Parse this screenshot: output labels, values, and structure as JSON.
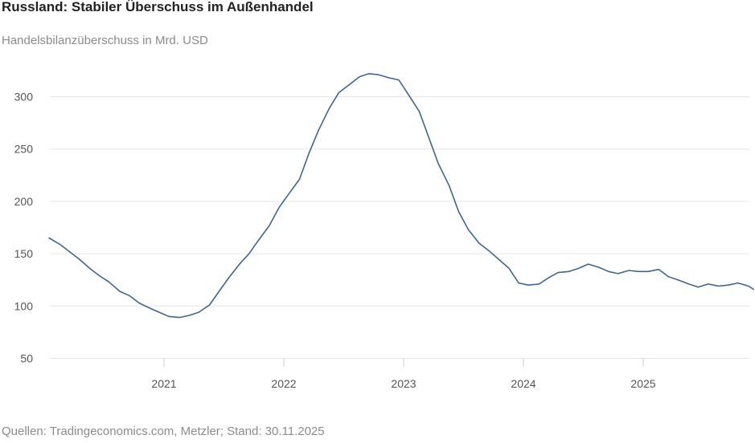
{
  "header": {
    "title": "Russland: Stabiler Überschuss im Außenhandel",
    "subtitle": "Handelsbilanzüberschuss in Mrd. USD"
  },
  "footer": {
    "source": "Quellen: Tradingeconomics.com, Metzler; Stand: 30.11.2025"
  },
  "colors": {
    "line": "#3d6692",
    "grid": "#e6e6e6",
    "axis": "#cccccc"
  },
  "chart_data": {
    "type": "line",
    "title": "Russland: Stabiler Überschuss im Außenhandel",
    "subtitle": "Handelsbilanzüberschuss in Mrd. USD",
    "xlabel": "",
    "ylabel": "",
    "grid": true,
    "ylim": [
      50,
      330
    ],
    "xlim": [
      2020.04,
      2025.92
    ],
    "y_ticks": [
      50,
      100,
      150,
      200,
      250,
      300
    ],
    "x_ticks": [
      2021,
      2022,
      2023,
      2024,
      2025
    ],
    "x_tick_labels": [
      "2021",
      "2022",
      "2023",
      "2024",
      "2025"
    ],
    "series": [
      {
        "name": "Handelsbilanzüberschuss",
        "x": [
          2020.04,
          2020.13,
          2020.21,
          2020.29,
          2020.38,
          2020.46,
          2020.54,
          2020.63,
          2020.71,
          2020.79,
          2020.88,
          2020.96,
          2021.04,
          2021.13,
          2021.21,
          2021.29,
          2021.38,
          2021.46,
          2021.54,
          2021.63,
          2021.71,
          2021.79,
          2021.88,
          2021.96,
          2022.04,
          2022.13,
          2022.21,
          2022.29,
          2022.38,
          2022.46,
          2022.54,
          2022.63,
          2022.71,
          2022.79,
          2022.88,
          2022.96,
          2023.04,
          2023.13,
          2023.21,
          2023.29,
          2023.38,
          2023.46,
          2023.54,
          2023.63,
          2023.71,
          2023.79,
          2023.88,
          2023.96,
          2024.04,
          2024.13,
          2024.21,
          2024.29,
          2024.38,
          2024.46,
          2024.54,
          2024.63,
          2024.71,
          2024.79,
          2024.88,
          2024.96,
          2025.04,
          2025.13,
          2025.21,
          2025.29,
          2025.38,
          2025.46,
          2025.54,
          2025.63,
          2025.71,
          2025.79,
          2025.88,
          2025.92
        ],
        "values": [
          165,
          159,
          152,
          145,
          136,
          129,
          123,
          114,
          110,
          103,
          98,
          94,
          90,
          89,
          91,
          94,
          101,
          114,
          127,
          140,
          150,
          163,
          177,
          194,
          207,
          221,
          246,
          268,
          289,
          304,
          311,
          319,
          322,
          321,
          318,
          316,
          302,
          286,
          261,
          236,
          215,
          190,
          173,
          160,
          153,
          145,
          136,
          122,
          120,
          121,
          127,
          132,
          133,
          136,
          140,
          137,
          133,
          131,
          134,
          133,
          133,
          135,
          128,
          125,
          121,
          118,
          121,
          119,
          120,
          122,
          119,
          116
        ]
      }
    ]
  }
}
